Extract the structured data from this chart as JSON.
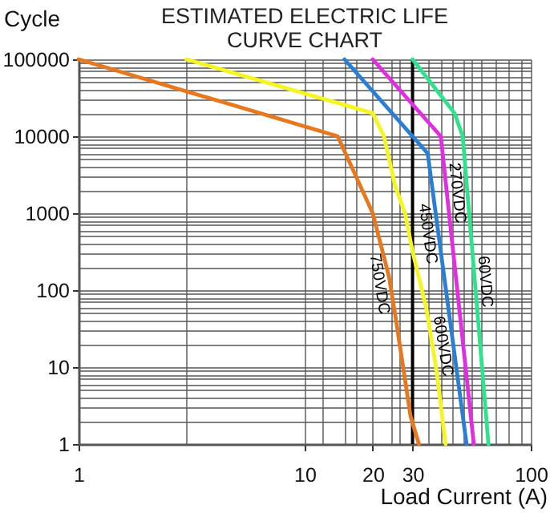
{
  "chart_data": {
    "type": "line",
    "title": "ESTIMATED ELECTRIC LIFE CURVE CHART",
    "xlabel": "Load Current (A)",
    "ylabel": "Cycle",
    "log": "xy",
    "xlim": [
      1,
      100
    ],
    "ylim": [
      1,
      100000
    ],
    "xticks": [
      1,
      {
        "value": 3,
        "label": null
      },
      10,
      {
        "value": 12,
        "label": null
      },
      {
        "value": 15,
        "label": null
      },
      {
        "value": 17,
        "label": null
      },
      20,
      {
        "value": 24,
        "label": null
      },
      {
        "value": 26,
        "label": null
      },
      30,
      {
        "value": 35,
        "label": null
      },
      {
        "value": 40,
        "label": null
      },
      {
        "value": 45,
        "label": null
      },
      {
        "value": 50,
        "label": null
      },
      {
        "value": 55,
        "label": null
      },
      {
        "value": 60,
        "label": null
      },
      {
        "value": 70,
        "label": null
      },
      {
        "value": 80,
        "label": null
      },
      {
        "value": 90,
        "label": null
      },
      100
    ],
    "yticks": [
      1,
      {
        "value": 2,
        "label": null
      },
      {
        "value": 3,
        "label": null
      },
      {
        "value": 4,
        "label": null
      },
      {
        "value": 5,
        "label": null
      },
      {
        "value": 6,
        "label": null
      },
      {
        "value": 7,
        "label": null
      },
      {
        "value": 8,
        "label": null
      },
      {
        "value": 9,
        "label": null
      },
      10,
      {
        "value": 20,
        "label": null
      },
      {
        "value": 30,
        "label": null
      },
      {
        "value": 40,
        "label": null
      },
      {
        "value": 50,
        "label": null
      },
      {
        "value": 60,
        "label": null
      },
      {
        "value": 70,
        "label": null
      },
      {
        "value": 80,
        "label": null
      },
      {
        "value": 90,
        "label": null
      },
      100,
      {
        "value": 200,
        "label": null
      },
      {
        "value": 300,
        "label": null
      },
      {
        "value": 400,
        "label": null
      },
      {
        "value": 500,
        "label": null
      },
      {
        "value": 600,
        "label": null
      },
      {
        "value": 700,
        "label": null
      },
      {
        "value": 800,
        "label": null
      },
      {
        "value": 900,
        "label": null
      },
      1000,
      {
        "value": 2000,
        "label": null
      },
      {
        "value": 3000,
        "label": null
      },
      {
        "value": 4000,
        "label": null
      },
      {
        "value": 5000,
        "label": null
      },
      {
        "value": 6000,
        "label": null
      },
      {
        "value": 7000,
        "label": null
      },
      {
        "value": 8000,
        "label": null
      },
      {
        "value": 9000,
        "label": null
      },
      10000,
      {
        "value": 20000,
        "label": null
      },
      {
        "value": 30000,
        "label": null
      },
      {
        "value": 40000,
        "label": null
      },
      {
        "value": 50000,
        "label": null
      },
      {
        "value": 60000,
        "label": null
      },
      {
        "value": 70000,
        "label": null
      },
      {
        "value": 80000,
        "label": null
      },
      {
        "value": 90000,
        "label": null
      },
      100000
    ],
    "grid": true,
    "ref_lines": [
      {
        "axis": "x",
        "value": 30,
        "color": "#000000"
      }
    ],
    "series": [
      {
        "name": "750VDC",
        "color": "#e8781e",
        "x": [
          1,
          14,
          20,
          23.6,
          25.2,
          29.4,
          32
        ],
        "values": [
          100000,
          10000,
          1000,
          150,
          46,
          2.3,
          1
        ]
      },
      {
        "name": "600VDC",
        "color": "#f5f523",
        "x": [
          3,
          20,
          22.4,
          25.2,
          27.8,
          30,
          34.6,
          38.2,
          42
        ],
        "values": [
          100000,
          20000,
          10000,
          2200,
          1000,
          320,
          56,
          9.5,
          1
        ]
      },
      {
        "name": "450VDC",
        "color": "#2a7fd4",
        "x": [
          15,
          35,
          52
        ],
        "values": [
          100000,
          6000,
          1
        ]
      },
      {
        "name": "270VDC",
        "color": "#e02ee0",
        "x": [
          20,
          40,
          56
        ],
        "values": [
          100000,
          10000,
          1
        ]
      },
      {
        "name": "60VDC",
        "color": "#2ee38c",
        "x": [
          30,
          46,
          50,
          65
        ],
        "values": [
          100000,
          20000,
          10000,
          1
        ]
      }
    ]
  }
}
